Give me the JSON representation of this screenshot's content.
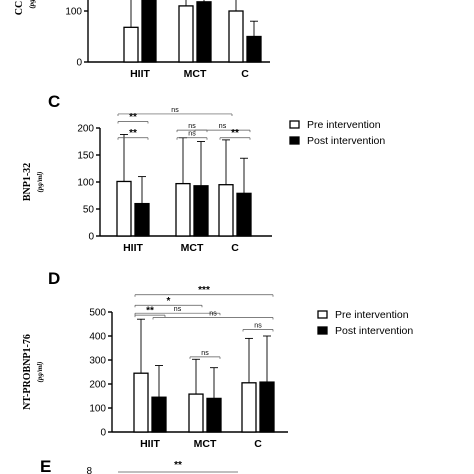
{
  "colors": {
    "pre": "#ffffff",
    "post": "#000000",
    "stroke": "#000000"
  },
  "chart_data": [
    {
      "panel": "",
      "type": "bar",
      "ylabel": "CC",
      "yunit": "(pg",
      "categories": [
        "HIIT",
        "MCT",
        "C"
      ],
      "series": [
        {
          "values": [
            68,
            110,
            100
          ],
          "errors": [
            55,
            95,
            80
          ]
        },
        {
          "values": [
            165,
            118,
            50
          ],
          "errors": [
            45,
            85,
            30
          ]
        }
      ],
      "ylim": [
        0,
        200
      ],
      "yticks": [
        0,
        100
      ],
      "significance": [],
      "legend": null
    },
    {
      "panel": "C",
      "type": "bar",
      "ylabel": "BNP1-32",
      "yunit": "(pg/ml)",
      "categories": [
        "HIIT",
        "MCT",
        "C"
      ],
      "series": [
        {
          "name": "Pre intervention",
          "values": [
            101,
            97,
            95
          ],
          "errors": [
            87,
            85,
            83
          ]
        },
        {
          "name": "Post intervention",
          "values": [
            60,
            93,
            79
          ],
          "errors": [
            50,
            82,
            65
          ]
        }
      ],
      "ylim": [
        0,
        200
      ],
      "yticks": [
        0,
        50,
        100,
        150,
        200
      ],
      "significance": [
        {
          "from": 0,
          "to": 1,
          "label": "**",
          "y": 212
        },
        {
          "from": 2,
          "to": 3,
          "label": "ns",
          "y": 196
        },
        {
          "from": 3,
          "to": 5,
          "label": "ns",
          "y": 196
        },
        {
          "from": 0,
          "to": 1,
          "label": "**",
          "y": 182,
          "inner": true
        },
        {
          "from": 2,
          "to": 3,
          "label": "ns",
          "y": 182,
          "inner": true
        },
        {
          "from": 4,
          "to": 5,
          "label": "**",
          "y": 182,
          "inner": true
        },
        {
          "from": 0,
          "to": 4,
          "label": "ns",
          "y": 226
        }
      ],
      "legend": "right"
    },
    {
      "panel": "D",
      "type": "bar",
      "ylabel": "NT-PROBNP1-76",
      "yunit": "(pg/ml)",
      "categories": [
        "HIIT",
        "MCT",
        "C"
      ],
      "series": [
        {
          "name": "Pre intervention",
          "values": [
            245,
            158,
            205
          ],
          "errors": [
            225,
            145,
            185
          ]
        },
        {
          "name": "Post intervention",
          "values": [
            145,
            140,
            208
          ],
          "errors": [
            132,
            128,
            192
          ]
        }
      ],
      "ylim": [
        0,
        500
      ],
      "yticks": [
        0,
        100,
        200,
        300,
        400,
        500
      ],
      "significance": [
        {
          "from": 0,
          "to": 5,
          "label": "***",
          "y": 572
        },
        {
          "from": 0,
          "to": 2,
          "label": "*",
          "y": 528
        },
        {
          "from": 0,
          "to": 3,
          "label": "ns",
          "y": 495,
          "inner": true
        },
        {
          "from": 0,
          "to": 1,
          "label": "**",
          "y": 487,
          "inner": true
        },
        {
          "from": 2,
          "to": 3,
          "label": "ns",
          "y": 313,
          "inner": true
        },
        {
          "from": 4,
          "to": 5,
          "label": "ns",
          "y": 427,
          "inner": true
        },
        {
          "from": 1,
          "to": 5,
          "label": "ns",
          "y": 477
        }
      ],
      "legend": "right"
    },
    {
      "panel": "E",
      "type": "bar",
      "ylabel": "",
      "yunit": "",
      "categories": [],
      "series": [],
      "significance": [
        {
          "label": "**"
        }
      ],
      "legend": null
    }
  ]
}
